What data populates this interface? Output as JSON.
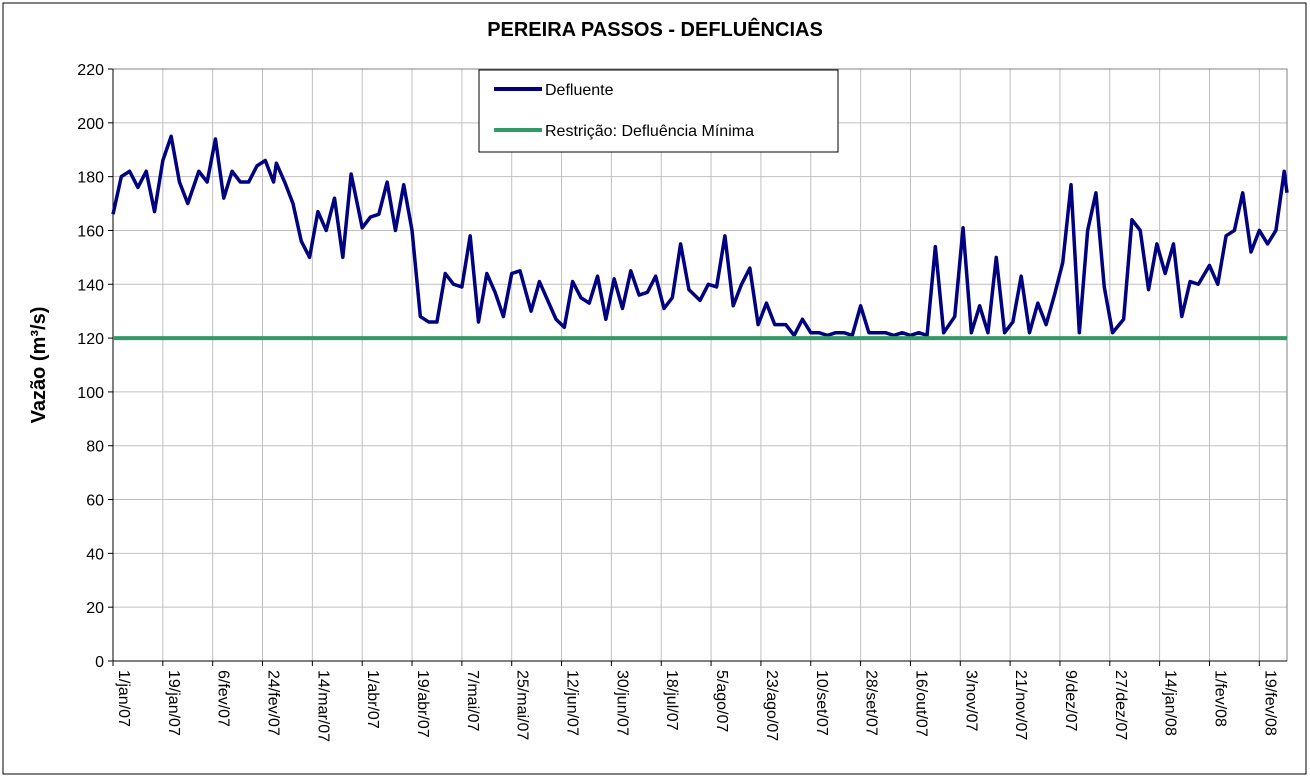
{
  "chart_data": {
    "type": "line",
    "title": "PEREIRA PASSOS - DEFLUÊNCIAS",
    "y_label": "Vazão (m³/s)",
    "xlim": [
      "2007-01-01",
      "2008-02-29"
    ],
    "xticks": [
      {
        "value": "2007-01-01",
        "label": "1/jan/07"
      },
      {
        "value": "2007-01-19",
        "label": "19/jan/07"
      },
      {
        "value": "2007-02-06",
        "label": "6/fev/07"
      },
      {
        "value": "2007-02-24",
        "label": "24/fev/07"
      },
      {
        "value": "2007-03-14",
        "label": "14/mar/07"
      },
      {
        "value": "2007-04-01",
        "label": "1/abr/07"
      },
      {
        "value": "2007-04-19",
        "label": "19/abr/07"
      },
      {
        "value": "2007-05-07",
        "label": "7/mai/07"
      },
      {
        "value": "2007-05-25",
        "label": "25/mai/07"
      },
      {
        "value": "2007-06-12",
        "label": "12/jun/07"
      },
      {
        "value": "2007-06-30",
        "label": "30/jun/07"
      },
      {
        "value": "2007-07-18",
        "label": "18/jul/07"
      },
      {
        "value": "2007-08-05",
        "label": "5/ago/07"
      },
      {
        "value": "2007-08-23",
        "label": "23/ago/07"
      },
      {
        "value": "2007-09-10",
        "label": "10/set/07"
      },
      {
        "value": "2007-09-28",
        "label": "28/set/07"
      },
      {
        "value": "2007-10-16",
        "label": "16/out/07"
      },
      {
        "value": "2007-11-03",
        "label": "3/nov/07"
      },
      {
        "value": "2007-11-21",
        "label": "21/nov/07"
      },
      {
        "value": "2007-12-09",
        "label": "9/dez/07"
      },
      {
        "value": "2007-12-27",
        "label": "27/dez/07"
      },
      {
        "value": "2008-01-14",
        "label": "14/jan/08"
      },
      {
        "value": "2008-02-01",
        "label": "1/fev/08"
      },
      {
        "value": "2008-02-19",
        "label": "19/fev/08"
      }
    ],
    "ylim": [
      0,
      220
    ],
    "yticks": [
      0,
      20,
      40,
      60,
      80,
      100,
      120,
      140,
      160,
      180,
      200,
      220
    ],
    "grid": true,
    "legend": "top",
    "series": [
      {
        "name": "Defluente",
        "color": "#000080",
        "x": [
          "2007-01-01",
          "2007-01-04",
          "2007-01-07",
          "2007-01-10",
          "2007-01-13",
          "2007-01-16",
          "2007-01-19",
          "2007-01-22",
          "2007-01-25",
          "2007-01-28",
          "2007-02-01",
          "2007-02-04",
          "2007-02-07",
          "2007-02-10",
          "2007-02-13",
          "2007-02-16",
          "2007-02-19",
          "2007-02-22",
          "2007-02-25",
          "2007-02-28",
          "2007-03-01",
          "2007-03-04",
          "2007-03-07",
          "2007-03-10",
          "2007-03-13",
          "2007-03-16",
          "2007-03-19",
          "2007-03-22",
          "2007-03-25",
          "2007-03-28",
          "2007-04-01",
          "2007-04-04",
          "2007-04-07",
          "2007-04-10",
          "2007-04-13",
          "2007-04-16",
          "2007-04-19",
          "2007-04-22",
          "2007-04-25",
          "2007-04-28",
          "2007-05-01",
          "2007-05-04",
          "2007-05-07",
          "2007-05-10",
          "2007-05-13",
          "2007-05-16",
          "2007-05-19",
          "2007-05-22",
          "2007-05-25",
          "2007-05-28",
          "2007-06-01",
          "2007-06-04",
          "2007-06-07",
          "2007-06-10",
          "2007-06-13",
          "2007-06-16",
          "2007-06-19",
          "2007-06-22",
          "2007-06-25",
          "2007-06-28",
          "2007-07-01",
          "2007-07-04",
          "2007-07-07",
          "2007-07-10",
          "2007-07-13",
          "2007-07-16",
          "2007-07-19",
          "2007-07-22",
          "2007-07-25",
          "2007-07-28",
          "2007-08-01",
          "2007-08-04",
          "2007-08-07",
          "2007-08-10",
          "2007-08-13",
          "2007-08-16",
          "2007-08-19",
          "2007-08-22",
          "2007-08-25",
          "2007-08-28",
          "2007-09-01",
          "2007-09-04",
          "2007-09-07",
          "2007-09-10",
          "2007-09-13",
          "2007-09-16",
          "2007-09-19",
          "2007-09-22",
          "2007-09-25",
          "2007-09-28",
          "2007-10-01",
          "2007-10-04",
          "2007-10-07",
          "2007-10-10",
          "2007-10-13",
          "2007-10-16",
          "2007-10-19",
          "2007-10-22",
          "2007-10-25",
          "2007-10-28",
          "2007-11-01",
          "2007-11-04",
          "2007-11-07",
          "2007-11-10",
          "2007-11-13",
          "2007-11-16",
          "2007-11-19",
          "2007-11-22",
          "2007-11-25",
          "2007-11-28",
          "2007-12-01",
          "2007-12-04",
          "2007-12-07",
          "2007-12-10",
          "2007-12-13",
          "2007-12-16",
          "2007-12-19",
          "2007-12-22",
          "2007-12-25",
          "2007-12-28",
          "2008-01-01",
          "2008-01-04",
          "2008-01-07",
          "2008-01-10",
          "2008-01-13",
          "2008-01-16",
          "2008-01-19",
          "2008-01-22",
          "2008-01-25",
          "2008-01-28",
          "2008-02-01",
          "2008-02-04",
          "2008-02-07",
          "2008-02-10",
          "2008-02-13",
          "2008-02-16",
          "2008-02-19",
          "2008-02-22",
          "2008-02-25",
          "2008-02-28",
          "2008-02-29"
        ],
        "values": [
          166,
          180,
          182,
          176,
          182,
          167,
          186,
          195,
          178,
          170,
          182,
          178,
          194,
          172,
          182,
          178,
          178,
          184,
          186,
          178,
          185,
          178,
          170,
          156,
          150,
          167,
          160,
          172,
          150,
          181,
          161,
          165,
          166,
          178,
          160,
          177,
          160,
          128,
          126,
          126,
          144,
          140,
          139,
          158,
          126,
          144,
          137,
          128,
          144,
          145,
          130,
          141,
          134,
          127,
          124,
          141,
          135,
          133,
          143,
          127,
          142,
          131,
          145,
          136,
          137,
          143,
          131,
          135,
          155,
          138,
          134,
          140,
          139,
          158,
          132,
          140,
          146,
          125,
          133,
          125,
          125,
          121,
          127,
          122,
          122,
          121,
          122,
          122,
          121,
          132,
          122,
          122,
          122,
          121,
          122,
          121,
          122,
          121,
          154,
          122,
          128,
          161,
          122,
          132,
          122,
          150,
          122,
          126,
          143,
          122,
          133,
          125,
          136,
          148,
          177,
          122,
          160,
          174,
          139,
          122,
          127,
          164,
          160,
          138,
          155,
          144,
          155,
          128,
          141,
          140,
          147,
          140,
          158,
          160,
          174,
          152,
          160,
          155,
          160,
          182,
          174
        ]
      },
      {
        "name": "Restrição: Defluência Mínima",
        "color": "#339966",
        "x": [
          "2007-01-01",
          "2008-02-29"
        ],
        "values": [
          120,
          120
        ]
      }
    ]
  }
}
